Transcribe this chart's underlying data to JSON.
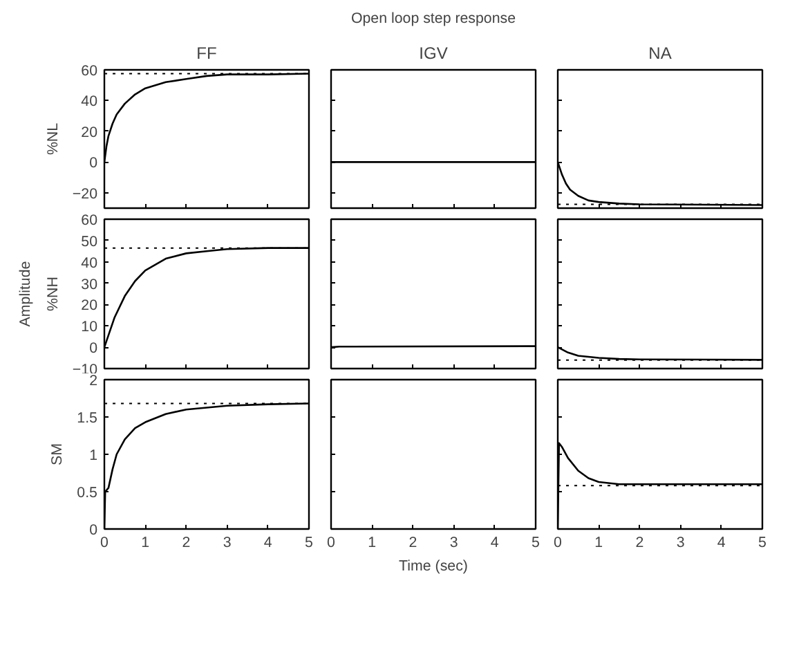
{
  "chart_data": [
    {
      "type": "line",
      "title": "FF",
      "ylabel": "%NL",
      "xlim": [
        0,
        5
      ],
      "ylim": [
        -30,
        60
      ],
      "xticks": [
        0,
        1,
        2,
        3,
        4,
        5
      ],
      "yticks": [
        -20,
        0,
        20,
        40,
        60
      ],
      "tick_labels": "y",
      "ref_lines": [
        {
          "axis": "y",
          "value": 57.5,
          "line_style": "dotted"
        }
      ],
      "series": [
        {
          "color": "#000000",
          "x": [
            0,
            0.05,
            0.1,
            0.2,
            0.3,
            0.5,
            0.75,
            1,
            1.5,
            2,
            2.5,
            3,
            4,
            5
          ],
          "values": [
            0,
            10,
            17,
            25,
            31,
            38,
            44,
            48,
            52,
            54,
            56,
            57,
            57,
            57.5
          ]
        }
      ]
    },
    {
      "type": "line",
      "title": "IGV",
      "annotations": [
        "Open loop step response"
      ],
      "xlim": [
        0,
        5
      ],
      "ylim": [
        -30,
        60
      ],
      "xticks": [
        0,
        1,
        2,
        3,
        4,
        5
      ],
      "yticks": [
        -20,
        0,
        20,
        40,
        60
      ],
      "tick_labels": false,
      "series": [
        {
          "color": "#000000",
          "x": [
            0,
            5
          ],
          "values": [
            0,
            0
          ]
        }
      ]
    },
    {
      "type": "line",
      "title": "NA",
      "xlim": [
        0,
        5
      ],
      "ylim": [
        -30,
        60
      ],
      "xticks": [
        0,
        1,
        2,
        3,
        4,
        5
      ],
      "yticks": [
        -20,
        0,
        20,
        40,
        60
      ],
      "tick_labels": false,
      "ref_lines": [
        {
          "axis": "y",
          "value": -27.5,
          "line_style": "dotted"
        }
      ],
      "series": [
        {
          "color": "#000000",
          "x": [
            0,
            0.1,
            0.2,
            0.3,
            0.5,
            0.75,
            1,
            1.5,
            2,
            5
          ],
          "values": [
            0,
            -8,
            -14,
            -18,
            -22,
            -25,
            -26,
            -27,
            -27.5,
            -28
          ]
        }
      ]
    },
    {
      "type": "line",
      "ylabel": "%NH",
      "annotations": [
        "Amplitude"
      ],
      "xlim": [
        0,
        5
      ],
      "ylim": [
        -10,
        60
      ],
      "xticks": [
        0,
        1,
        2,
        3,
        4,
        5
      ],
      "yticks": [
        -10,
        0,
        10,
        20,
        30,
        40,
        50,
        60
      ],
      "tick_labels": "y",
      "ref_lines": [
        {
          "axis": "y",
          "value": 46.5,
          "line_style": "dotted"
        }
      ],
      "series": [
        {
          "color": "#000000",
          "x": [
            0,
            0.25,
            0.5,
            0.75,
            1,
            1.5,
            2,
            2.5,
            3,
            4,
            5
          ],
          "values": [
            0,
            14,
            24,
            31,
            36,
            41.5,
            44,
            45,
            46,
            46.5,
            46.5
          ]
        }
      ]
    },
    {
      "type": "line",
      "xlim": [
        0,
        5
      ],
      "ylim": [
        -10,
        60
      ],
      "xticks": [
        0,
        1,
        2,
        3,
        4,
        5
      ],
      "yticks": [
        -10,
        0,
        10,
        20,
        30,
        40,
        50,
        60
      ],
      "tick_labels": false,
      "series": [
        {
          "color": "#000000",
          "x": [
            0,
            0.2,
            5
          ],
          "values": [
            0,
            0.3,
            0.5
          ]
        }
      ]
    },
    {
      "type": "line",
      "xlim": [
        0,
        5
      ],
      "ylim": [
        -10,
        60
      ],
      "xticks": [
        0,
        1,
        2,
        3,
        4,
        5
      ],
      "yticks": [
        -10,
        0,
        10,
        20,
        30,
        40,
        50,
        60
      ],
      "tick_labels": false,
      "ref_lines": [
        {
          "axis": "y",
          "value": -6,
          "line_style": "dotted"
        }
      ],
      "series": [
        {
          "color": "#000000",
          "x": [
            0,
            0.25,
            0.5,
            1,
            1.5,
            2,
            5
          ],
          "values": [
            0,
            -2.5,
            -4,
            -5,
            -5.5,
            -5.7,
            -5.9
          ]
        }
      ]
    },
    {
      "type": "line",
      "ylabel": "SM",
      "xlim": [
        0,
        5
      ],
      "ylim": [
        0,
        2
      ],
      "xticks": [
        0,
        1,
        2,
        3,
        4,
        5
      ],
      "yticks": [
        0,
        0.5,
        1,
        1.5,
        2
      ],
      "ref_lines": [
        {
          "axis": "y",
          "value": 1.68,
          "line_style": "dotted"
        }
      ],
      "series": [
        {
          "color": "#000000",
          "x": [
            0,
            0.02,
            0.1,
            0.2,
            0.3,
            0.5,
            0.75,
            1,
            1.5,
            2,
            3,
            4,
            5
          ],
          "values": [
            0,
            0.5,
            0.55,
            0.8,
            1.0,
            1.2,
            1.35,
            1.43,
            1.54,
            1.6,
            1.65,
            1.67,
            1.68
          ]
        }
      ]
    },
    {
      "type": "line",
      "xlabel": "Time (sec)",
      "xlim": [
        0,
        5
      ],
      "ylim": [
        0,
        2
      ],
      "xticks": [
        0,
        1,
        2,
        3,
        4,
        5
      ],
      "yticks": [
        0,
        0.5,
        1,
        1.5,
        2
      ],
      "tick_labels": "x"
    },
    {
      "type": "line",
      "xlim": [
        0,
        5
      ],
      "ylim": [
        0,
        2
      ],
      "xticks": [
        0,
        1,
        2,
        3,
        4,
        5
      ],
      "yticks": [
        0,
        0.5,
        1,
        1.5,
        2
      ],
      "tick_labels": "x",
      "ref_lines": [
        {
          "axis": "y",
          "value": 0.58,
          "line_style": "dotted"
        }
      ],
      "series": [
        {
          "color": "#000000",
          "x": [
            0,
            0.03,
            0.1,
            0.25,
            0.5,
            0.75,
            1,
            1.5,
            2,
            5
          ],
          "values": [
            0,
            1.15,
            1.1,
            0.95,
            0.78,
            0.68,
            0.63,
            0.6,
            0.6,
            0.6
          ]
        }
      ]
    }
  ]
}
